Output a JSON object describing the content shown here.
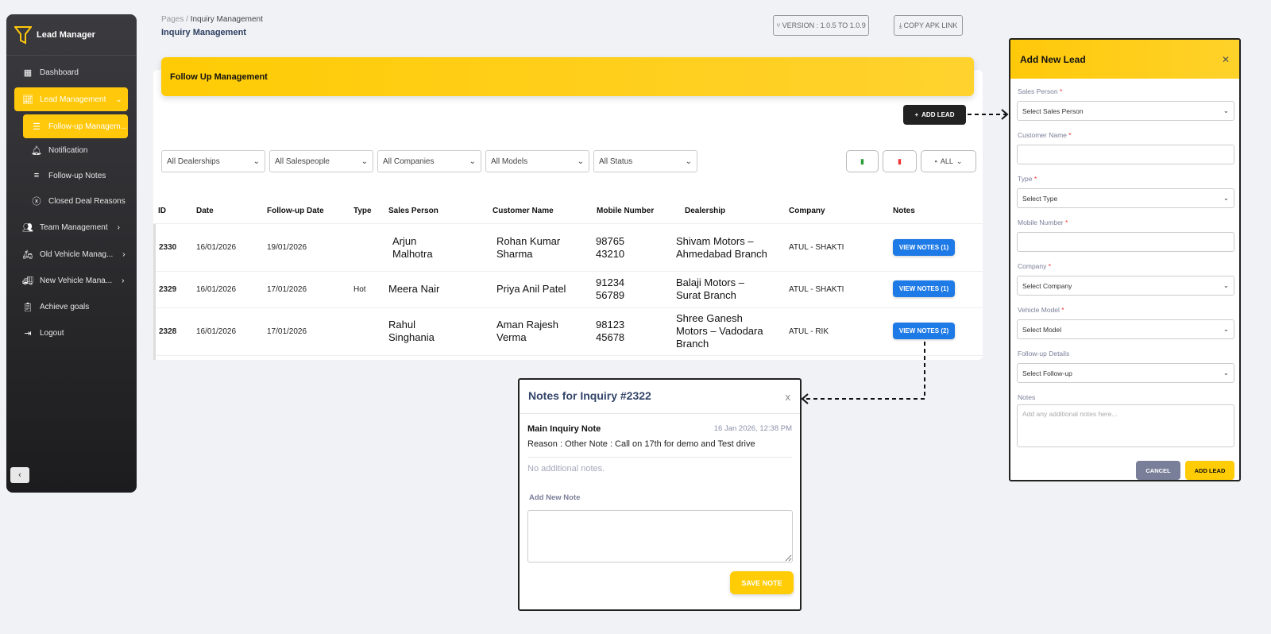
{
  "app": {
    "brand": "Lead Manager"
  },
  "sidebar": {
    "items": [
      {
        "label": "Dashboard",
        "icon": "grid-icon"
      },
      {
        "label": "Lead Management",
        "icon": "chart-line-icon"
      },
      {
        "label": "Follow-up Managem...",
        "icon": "list-icon"
      },
      {
        "label": "Notification",
        "icon": "bell-icon"
      },
      {
        "label": "Follow-up Notes",
        "icon": "lines-icon"
      },
      {
        "label": "Closed Deal Reasons",
        "icon": "x-circle-icon"
      },
      {
        "label": "Team Management",
        "icon": "users-icon"
      },
      {
        "label": "Old Vehicle Manag...",
        "icon": "scooter-icon"
      },
      {
        "label": "New Vehicle Mana...",
        "icon": "vehicle-icon"
      },
      {
        "label": "Achieve goals",
        "icon": "clipboard-icon"
      },
      {
        "label": "Logout",
        "icon": "logout-icon"
      }
    ],
    "collapse": "‹"
  },
  "header": {
    "crumb_root": "Pages",
    "crumb_sep": "/",
    "crumb_current": "Inquiry Management",
    "title": "Inquiry Management",
    "version": "VERSION : 1.0.5 TO 1.0.9",
    "copy_apk": "COPY APK LINK"
  },
  "main": {
    "banner": "Follow Up Management",
    "add_lead": "ADD LEAD",
    "filters": [
      "All Dealerships",
      "All Salespeople",
      "All Companies",
      "All Models",
      "All Status"
    ],
    "range": "ALL",
    "columns": [
      "ID",
      "Date",
      "Follow-up Date",
      "Type",
      "Sales Person",
      "Customer Name",
      "Mobile Number",
      "Dealership",
      "Company",
      "Notes"
    ],
    "rows": [
      {
        "id": "2330",
        "date": "16/01/2026",
        "followup": "19/01/2026",
        "type": "",
        "sales": "Arjun Malhotra",
        "customer": "Rohan Kumar Sharma",
        "mobile": "98765 43210",
        "dealership": "Shivam Motors – Ahmedabad Branch",
        "company": "ATUL - SHAKTI",
        "notes": "VIEW NOTES (1)"
      },
      {
        "id": "2329",
        "date": "16/01/2026",
        "followup": "17/01/2026",
        "type": "Hot",
        "sales": "Meera Nair",
        "customer": "Priya Anil Patel",
        "mobile": "91234 56789",
        "dealership": "Balaji Motors – Surat Branch",
        "company": "ATUL - SHAKTI",
        "notes": "VIEW NOTES (1)"
      },
      {
        "id": "2328",
        "date": "16/01/2026",
        "followup": "17/01/2026",
        "type": "",
        "sales": "Rahul Singhania",
        "customer": "Aman Rajesh Verma",
        "mobile": "98123 45678",
        "dealership": "Shree Ganesh Motors – Vadodara Branch",
        "company": "ATUL - RIK",
        "notes": "VIEW NOTES (2)"
      }
    ]
  },
  "notes_modal": {
    "title": "Notes for Inquiry #2322",
    "close": "x",
    "main_title": "Main Inquiry Note",
    "timestamp": "16 Jan 2026, 12:38 PM",
    "body": "Reason : Other Note : Call on 17th for demo and Test drive",
    "empty": "No additional notes.",
    "add_label": "Add New Note",
    "save": "SAVE NOTE"
  },
  "lead_modal": {
    "title": "Add New Lead",
    "close": "✕",
    "fields": [
      {
        "label": "Sales Person",
        "required": "*",
        "value": "Select Sales Person"
      },
      {
        "label": "Customer Name",
        "required": "*",
        "value": ""
      },
      {
        "label": "Type",
        "required": "*",
        "value": "Select Type"
      },
      {
        "label": "Mobile Number",
        "required": "*",
        "value": ""
      },
      {
        "label": "Company",
        "required": "*",
        "value": "Select Company"
      },
      {
        "label": "Vehicle Model",
        "required": "*",
        "value": "Select Model"
      },
      {
        "label": "Follow-up Details",
        "required": "",
        "value": "Select Follow-up"
      },
      {
        "label": "Notes",
        "required": "",
        "placeholder": "Add any additional notes here..."
      }
    ],
    "cancel": "CANCEL",
    "submit": "ADD LEAD"
  },
  "colors": {
    "accent": "#ffc80a",
    "primary_button": "#1e7ae6",
    "sidebar": "#2a2a2d"
  }
}
